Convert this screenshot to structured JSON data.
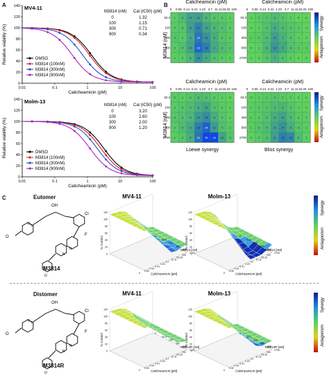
{
  "panelA": {
    "letter": "A",
    "chart_data": [
      {
        "type": "line",
        "title": "MV4-11",
        "xlabel": "Calicheamicin (pM)",
        "ylabel": "Relative viability (%)",
        "xscale": "log",
        "xlim": [
          0.01,
          100
        ],
        "ylim": [
          0,
          140
        ],
        "xticks": [
          "0.01",
          "0.1",
          "1",
          "10",
          "100"
        ],
        "yticks": [
          "0",
          "20",
          "40",
          "60",
          "80",
          "100",
          "120",
          "140"
        ],
        "table_header": [
          "M3814 (nM)",
          "Cal (IC50) (pM)"
        ],
        "table_rows": [
          [
            "0",
            "1.32"
          ],
          [
            "100",
            "1.15"
          ],
          [
            "300",
            "0.71"
          ],
          [
            "900",
            "0.34"
          ]
        ],
        "series": [
          {
            "name": "DMSO",
            "color": "#000000",
            "ic50": 1.32
          },
          {
            "name": "M3814 (100nM)",
            "color": "#e02020",
            "ic50": 1.15
          },
          {
            "name": "M3814 (300nM)",
            "color": "#2050d0",
            "ic50": 0.71
          },
          {
            "name": "M3814 (900nM)",
            "color": "#b020c0",
            "ic50": 0.34
          }
        ]
      },
      {
        "type": "line",
        "title": "Molm-13",
        "xlabel": "Calicheamicin (pM)",
        "ylabel": "Relative viability (%)",
        "xscale": "log",
        "xlim": [
          0.01,
          100
        ],
        "ylim": [
          0,
          140
        ],
        "xticks": [
          "0.01",
          "0.1",
          "1",
          "10",
          "100"
        ],
        "yticks": [
          "0",
          "20",
          "40",
          "60",
          "80",
          "100",
          "120",
          "140"
        ],
        "table_header": [
          "M3814 (nM)",
          "Cal (IC50) (pM)"
        ],
        "table_rows": [
          [
            "0",
            "3.20"
          ],
          [
            "100",
            "2.60"
          ],
          [
            "300",
            "2.00"
          ],
          [
            "900",
            "1.20"
          ]
        ],
        "series": [
          {
            "name": "DMSO",
            "color": "#000000",
            "ic50": 3.2
          },
          {
            "name": "M3814 (100nM)",
            "color": "#e02020",
            "ic50": 2.6
          },
          {
            "name": "M3814 (300nM)",
            "color": "#2050d0",
            "ic50": 2.0
          },
          {
            "name": "M3814 (900nM)",
            "color": "#b020c0",
            "ic50": 1.2
          }
        ]
      }
    ]
  },
  "panelB": {
    "letter": "B",
    "col_header": "Calicheamicin (pM)",
    "col_ticks": [
      "0",
      "0.05",
      "0.14",
      "0.41",
      "1.23",
      "3.7",
      "11.11",
      "33.33",
      "100"
    ],
    "row_label": "M3814 (nM)",
    "row_ticks": [
      "33.3",
      "100",
      "300",
      "900",
      "2700"
    ],
    "bottom_labels": [
      "Loewe synergy",
      "Bliss synergy"
    ],
    "colorbar_top": "Synergy",
    "colorbar_bottom": "Antagonism",
    "grids": [
      {
        "name": "mv4-loewe",
        "cells": [
          [
            1,
            5,
            10,
            11,
            6,
            3,
            2,
            1
          ],
          [
            2,
            3,
            11,
            17,
            10,
            6,
            4,
            2
          ],
          [
            3,
            2,
            9,
            20,
            14,
            8,
            3,
            2
          ],
          [
            2,
            4,
            10,
            23,
            18,
            9,
            5,
            3
          ],
          [
            1,
            2,
            6,
            14,
            9,
            4,
            2,
            1
          ]
        ]
      },
      {
        "name": "mv4-bliss",
        "cells": [
          [
            -1,
            2,
            3,
            5,
            3,
            1,
            0,
            0
          ],
          [
            0,
            1,
            4,
            8,
            5,
            3,
            2,
            -1
          ],
          [
            1,
            2,
            5,
            11,
            7,
            3,
            1,
            0
          ],
          [
            0,
            1,
            6,
            13,
            9,
            4,
            2,
            1
          ],
          [
            -1,
            0,
            3,
            7,
            4,
            1,
            0,
            0
          ]
        ]
      },
      {
        "name": "molm-loewe",
        "cells": [
          [
            2,
            1,
            3,
            5,
            4,
            2,
            1,
            0
          ],
          [
            2,
            3,
            5,
            8,
            10,
            4,
            2,
            1
          ],
          [
            3,
            4,
            6,
            12,
            15,
            8,
            3,
            1
          ],
          [
            2,
            5,
            9,
            18,
            24,
            12,
            4,
            2
          ],
          [
            1,
            3,
            8,
            20,
            35,
            40,
            10,
            3
          ]
        ]
      },
      {
        "name": "molm-bliss",
        "cells": [
          [
            0,
            1,
            2,
            3,
            2,
            1,
            0,
            0
          ],
          [
            1,
            2,
            3,
            5,
            6,
            3,
            1,
            0
          ],
          [
            1,
            2,
            4,
            8,
            10,
            5,
            2,
            1
          ],
          [
            1,
            3,
            5,
            10,
            14,
            8,
            3,
            1
          ],
          [
            0,
            2,
            4,
            11,
            18,
            16,
            5,
            1
          ]
        ]
      }
    ]
  },
  "panelC": {
    "letter": "C",
    "eutomer": {
      "title": "Eutomer",
      "compound": "M3814"
    },
    "distomer": {
      "title": "Distomer",
      "compound": "M3814R"
    },
    "plot_titles": [
      "MV4-11",
      "Molm-13"
    ],
    "z_label": "% Control",
    "x_label": "Calicheamicin [pM]",
    "y_label": "M3814 [nM]",
    "y_label_r": "M3814R [nM]",
    "x_ticks": [
      "0",
      "0.05",
      "0.14",
      "0.41",
      "1.23",
      "3.7",
      "11.11",
      "33.33",
      "100"
    ],
    "y_ticks": [
      "0",
      "33.3",
      "100",
      "300",
      "900",
      "2700"
    ],
    "z_ticks": [
      "0",
      "20",
      "40",
      "60",
      "80",
      "100",
      "120"
    ],
    "colorbar_top": "Synergy",
    "colorbar_bottom": "Antagonism"
  },
  "colors": {
    "synergy": "#1030c0",
    "neutral": "#60d060",
    "antagonism": "#c01010"
  }
}
